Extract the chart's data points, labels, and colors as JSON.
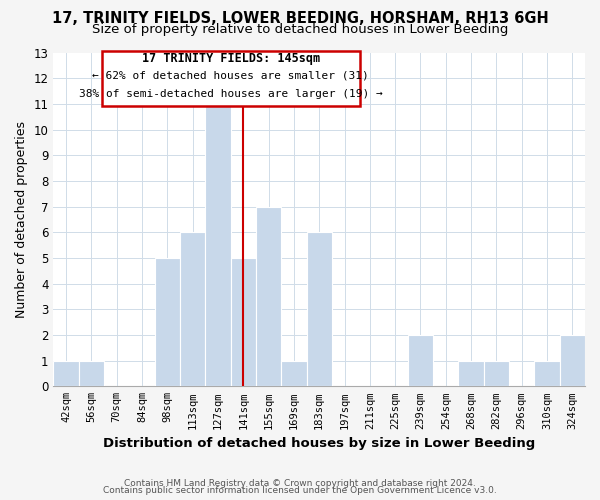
{
  "title": "17, TRINITY FIELDS, LOWER BEEDING, HORSHAM, RH13 6GH",
  "subtitle": "Size of property relative to detached houses in Lower Beeding",
  "xlabel": "Distribution of detached houses by size in Lower Beeding",
  "ylabel": "Number of detached properties",
  "bins": [
    "42sqm",
    "56sqm",
    "70sqm",
    "84sqm",
    "98sqm",
    "113sqm",
    "127sqm",
    "141sqm",
    "155sqm",
    "169sqm",
    "183sqm",
    "197sqm",
    "211sqm",
    "225sqm",
    "239sqm",
    "254sqm",
    "268sqm",
    "282sqm",
    "296sqm",
    "310sqm",
    "324sqm"
  ],
  "counts": [
    1,
    1,
    0,
    0,
    5,
    6,
    11,
    5,
    7,
    1,
    6,
    0,
    0,
    0,
    2,
    0,
    1,
    1,
    0,
    1,
    2
  ],
  "bar_color": "#c8d8ea",
  "vline_index": 7,
  "vline_color": "#cc0000",
  "annotation_box_color": "#cc0000",
  "annotation_title": "17 TRINITY FIELDS: 145sqm",
  "annotation_line1": "← 62% of detached houses are smaller (31)",
  "annotation_line2": "38% of semi-detached houses are larger (19) →",
  "ylim": [
    0,
    13
  ],
  "yticks": [
    0,
    1,
    2,
    3,
    4,
    5,
    6,
    7,
    8,
    9,
    10,
    11,
    12,
    13
  ],
  "footer1": "Contains HM Land Registry data © Crown copyright and database right 2024.",
  "footer2": "Contains public sector information licensed under the Open Government Licence v3.0.",
  "bg_color": "#f5f5f5",
  "plot_bg_color": "#ffffff",
  "grid_color": "#d0dce8",
  "title_fontsize": 10.5,
  "subtitle_fontsize": 9.5
}
